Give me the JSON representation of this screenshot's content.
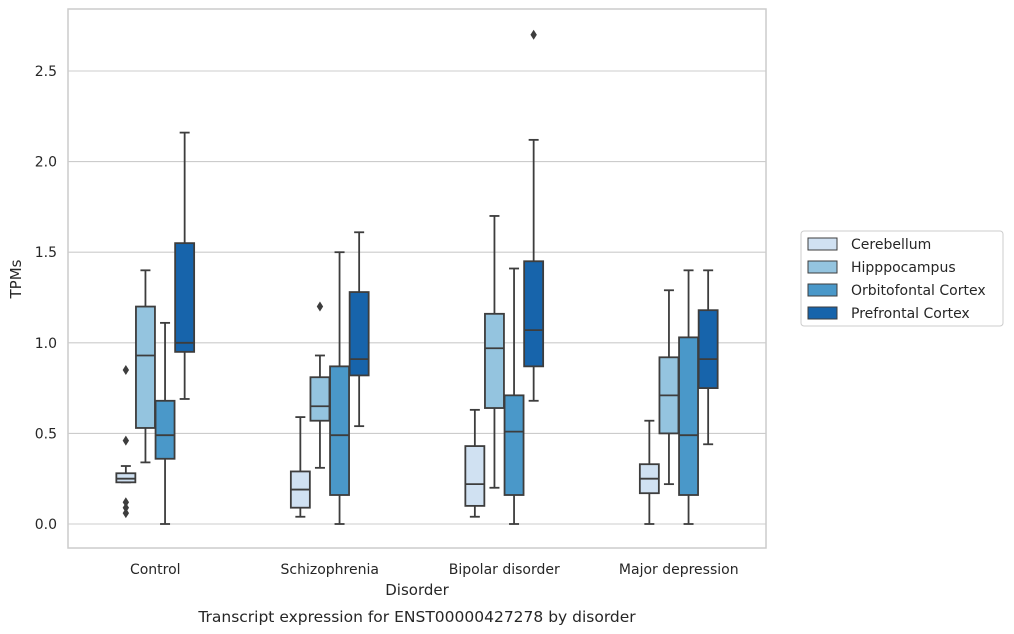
{
  "chart_data": {
    "type": "box",
    "xlabel": "Disorder",
    "ylabel": "TPMs",
    "caption": "Transcript expression for ENST00000427278 by disorder",
    "categories": [
      "Control",
      "Schizophrenia",
      "Bipolar disorder",
      "Major depression"
    ],
    "ylim": [
      -0.13,
      2.85
    ],
    "yticks": [
      "0.0",
      "0.5",
      "1.0",
      "1.5",
      "2.0",
      "2.5"
    ],
    "grid": true,
    "legend_position": "right",
    "series": [
      {
        "name": "Cerebellum",
        "color": "#d0e1f2",
        "boxes": [
          {
            "whislo": 0.23,
            "q1": 0.23,
            "med": 0.25,
            "q3": 0.28,
            "whishi": 0.32,
            "fliers": [
              0.85,
              0.46,
              0.12,
              0.09,
              0.06
            ]
          },
          {
            "whislo": 0.04,
            "q1": 0.09,
            "med": 0.19,
            "q3": 0.29,
            "whishi": 0.59,
            "fliers": []
          },
          {
            "whislo": 0.04,
            "q1": 0.1,
            "med": 0.22,
            "q3": 0.43,
            "whishi": 0.63,
            "fliers": []
          },
          {
            "whislo": 0.0,
            "q1": 0.17,
            "med": 0.25,
            "q3": 0.33,
            "whishi": 0.57,
            "fliers": []
          }
        ]
      },
      {
        "name": "Hipppocampus",
        "color": "#94c4df",
        "boxes": [
          {
            "whislo": 0.34,
            "q1": 0.53,
            "med": 0.93,
            "q3": 1.2,
            "whishi": 1.4,
            "fliers": []
          },
          {
            "whislo": 0.31,
            "q1": 0.57,
            "med": 0.65,
            "q3": 0.81,
            "whishi": 0.93,
            "fliers": [
              1.2
            ]
          },
          {
            "whislo": 0.2,
            "q1": 0.64,
            "med": 0.97,
            "q3": 1.16,
            "whishi": 1.7,
            "fliers": []
          },
          {
            "whislo": 0.22,
            "q1": 0.5,
            "med": 0.71,
            "q3": 0.92,
            "whishi": 1.29,
            "fliers": []
          }
        ]
      },
      {
        "name": "Orbitofontal Cortex",
        "color": "#4a98c9",
        "boxes": [
          {
            "whislo": 0.0,
            "q1": 0.36,
            "med": 0.49,
            "q3": 0.68,
            "whishi": 1.11,
            "fliers": []
          },
          {
            "whislo": 0.0,
            "q1": 0.16,
            "med": 0.49,
            "q3": 0.87,
            "whishi": 1.5,
            "fliers": []
          },
          {
            "whislo": 0.0,
            "q1": 0.16,
            "med": 0.51,
            "q3": 0.71,
            "whishi": 1.41,
            "fliers": []
          },
          {
            "whislo": 0.0,
            "q1": 0.16,
            "med": 0.49,
            "q3": 1.03,
            "whishi": 1.4,
            "fliers": []
          }
        ]
      },
      {
        "name": "Prefrontal Cortex",
        "color": "#1764ab",
        "boxes": [
          {
            "whislo": 0.69,
            "q1": 0.95,
            "med": 1.0,
            "q3": 1.55,
            "whishi": 2.16,
            "fliers": []
          },
          {
            "whislo": 0.54,
            "q1": 0.82,
            "med": 0.91,
            "q3": 1.28,
            "whishi": 1.61,
            "fliers": []
          },
          {
            "whislo": 0.68,
            "q1": 0.87,
            "med": 1.07,
            "q3": 1.45,
            "whishi": 2.12,
            "fliers": [
              2.7
            ]
          },
          {
            "whislo": 0.44,
            "q1": 0.75,
            "med": 0.91,
            "q3": 1.18,
            "whishi": 1.4,
            "fliers": []
          }
        ]
      }
    ]
  }
}
